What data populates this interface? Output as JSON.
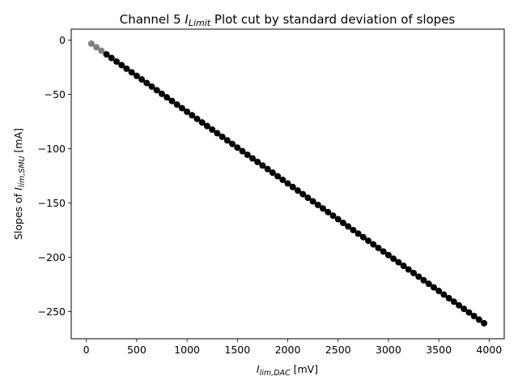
{
  "chart_data": {
    "type": "scatter",
    "title": {
      "prefix": "Channel 5 ",
      "math_main": "I",
      "math_sub": "Limit",
      "suffix": " Plot cut by standard deviation of slopes"
    },
    "xlabel": {
      "main": "I",
      "sub": "lim,DAC",
      "suffix": " [mV]"
    },
    "ylabel": {
      "prefix": "Slopes of ",
      "main": "I",
      "sub": "lim,SMU",
      "suffix": " [mA]"
    },
    "xlim": [
      -150,
      4150
    ],
    "ylim": [
      -275,
      10
    ],
    "xticks": [
      0,
      500,
      1000,
      1500,
      2000,
      2500,
      3000,
      3500,
      4000
    ],
    "yticks": [
      0,
      -50,
      -100,
      -150,
      -200,
      -250
    ],
    "grid": false,
    "series": [
      {
        "color": "#808080",
        "x": [
          50,
          100,
          150
        ],
        "y": [
          -3.3,
          -6.6,
          -9.9
        ]
      },
      {
        "color": "#000000",
        "x": [
          200,
          250,
          300,
          350,
          400,
          450,
          500,
          550,
          600,
          650,
          700,
          750,
          800,
          850,
          900,
          950,
          1000,
          1050,
          1100,
          1150,
          1200,
          1250,
          1300,
          1350,
          1400,
          1450,
          1500,
          1550,
          1600,
          1650,
          1700,
          1750,
          1800,
          1850,
          1900,
          1950,
          2000,
          2050,
          2100,
          2150,
          2200,
          2250,
          2300,
          2350,
          2400,
          2450,
          2500,
          2550,
          2600,
          2650,
          2700,
          2750,
          2800,
          2850,
          2900,
          2950,
          3000,
          3050,
          3100,
          3150,
          3200,
          3250,
          3300,
          3350,
          3400,
          3450,
          3500,
          3550,
          3600,
          3650,
          3700,
          3750,
          3800,
          3850,
          3900,
          3950
        ],
        "y": [
          -13.2,
          -16.5,
          -19.8,
          -23.1,
          -26.4,
          -29.7,
          -33.0,
          -36.3,
          -39.6,
          -42.9,
          -46.2,
          -49.5,
          -52.8,
          -56.1,
          -59.4,
          -62.7,
          -66.0,
          -69.3,
          -72.6,
          -75.9,
          -79.2,
          -82.5,
          -85.8,
          -89.1,
          -92.4,
          -95.7,
          -99.0,
          -102.3,
          -105.6,
          -108.9,
          -112.2,
          -115.5,
          -118.8,
          -122.1,
          -125.4,
          -128.7,
          -132.0,
          -135.3,
          -138.6,
          -141.9,
          -145.2,
          -148.5,
          -151.8,
          -155.1,
          -158.4,
          -161.7,
          -165.0,
          -168.3,
          -171.6,
          -174.9,
          -178.2,
          -181.5,
          -184.8,
          -188.1,
          -191.4,
          -194.7,
          -198.0,
          -201.3,
          -204.6,
          -207.9,
          -211.2,
          -214.5,
          -217.8,
          -221.1,
          -224.4,
          -227.7,
          -231.0,
          -234.3,
          -237.6,
          -240.9,
          -244.2,
          -247.5,
          -250.8,
          -254.1,
          -257.4,
          -260.7
        ]
      }
    ]
  }
}
